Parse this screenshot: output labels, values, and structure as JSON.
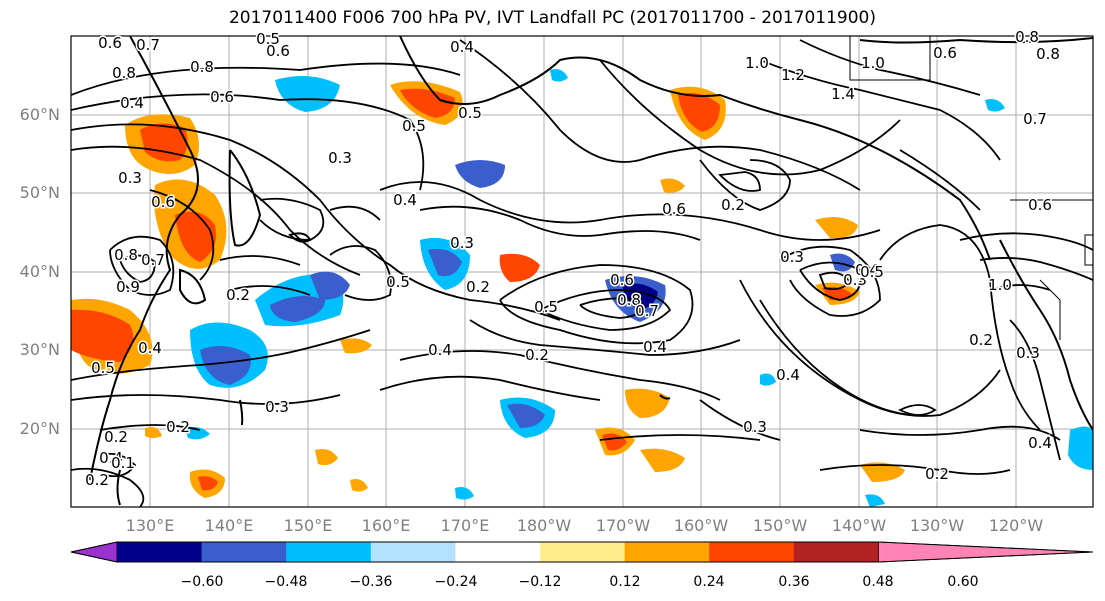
{
  "title": "2017011400 F006 700 hPa PV, IVT Landfall PC (2017011700 - 2017011900)",
  "map": {
    "lat_labels": [
      "60°N",
      "50°N",
      "40°N",
      "30°N",
      "20°N"
    ],
    "lon_labels": [
      "130°E",
      "140°E",
      "150°E",
      "160°E",
      "170°E",
      "180°W",
      "170°W",
      "160°W",
      "150°W",
      "140°W",
      "130°W",
      "120°W"
    ],
    "contour_labels": [
      "0.6",
      "0.7",
      "0.8",
      "0.5",
      "0.6",
      "0.4",
      "0.8",
      "0.6",
      "0.5",
      "0.3",
      "1.0",
      "1.2",
      "1.0",
      "1.4",
      "0.8",
      "0.6",
      "0.8",
      "0.4",
      "0.5",
      "0.3",
      "0.4",
      "0.3",
      "0.2",
      "0.4",
      "0.2",
      "0.5",
      "0.5",
      "0.2",
      "0.6",
      "0.8",
      "0.7",
      "0.4",
      "0.6",
      "0.3",
      "0.3",
      "0.4",
      "0.5",
      "0.4",
      "0.2",
      "0.3",
      "0.2",
      "0.2",
      "0.2",
      "0.4",
      "0.2",
      "0.3",
      "1.0",
      "0.6",
      "0.7",
      "0.4",
      "0.1",
      "0.2",
      "0.7",
      "0.6",
      "0.8",
      "0.9",
      "0.5",
      "0.4",
      "0.3"
    ]
  },
  "colorbar": {
    "ticks": [
      "−0.60",
      "−0.48",
      "−0.36",
      "−0.24",
      "−0.12",
      "0.12",
      "0.24",
      "0.36",
      "0.48",
      "0.60"
    ],
    "colors": [
      "#9a32cd",
      "#00008b",
      "#3a5fcd",
      "#00bfff",
      "#b2e2ff",
      "#ffffff",
      "#ffec8b",
      "#ffa500",
      "#ff4500",
      "#b22222",
      "#ff83b4"
    ]
  },
  "colors": {
    "neg_strong": "#2845b8",
    "neg_mid": "#00b2ee",
    "neg_weak": "#aee0ff",
    "pos_weak": "#ffe680",
    "pos_mid": "#ffa500",
    "pos_strong": "#ff4500",
    "pos_darker": "#b22222",
    "neg_deep": "#00008b"
  }
}
